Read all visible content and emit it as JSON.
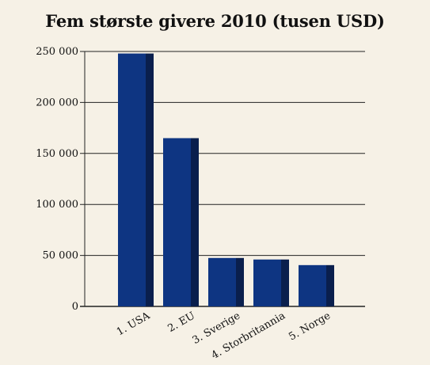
{
  "chart_data": {
    "type": "bar",
    "title": "Fem største givere 2010 (tusen USD)",
    "categories": [
      "1. USA",
      "2. EU",
      "3. Sverige",
      "4. Storbritannia",
      "5. Norge"
    ],
    "values": [
      248000,
      165000,
      47500,
      46000,
      40500
    ],
    "y_ticks": [
      0,
      50000,
      100000,
      150000,
      200000,
      250000
    ],
    "y_tick_labels": [
      "0",
      "50 000",
      "100 000",
      "150 000",
      "200 000",
      "250 000"
    ],
    "ylim": [
      0,
      250000
    ],
    "grid": true,
    "colors": {
      "bar_face": "#0e3582",
      "bar_side": "#0a1f4d",
      "background": "#f6f1e6"
    }
  }
}
